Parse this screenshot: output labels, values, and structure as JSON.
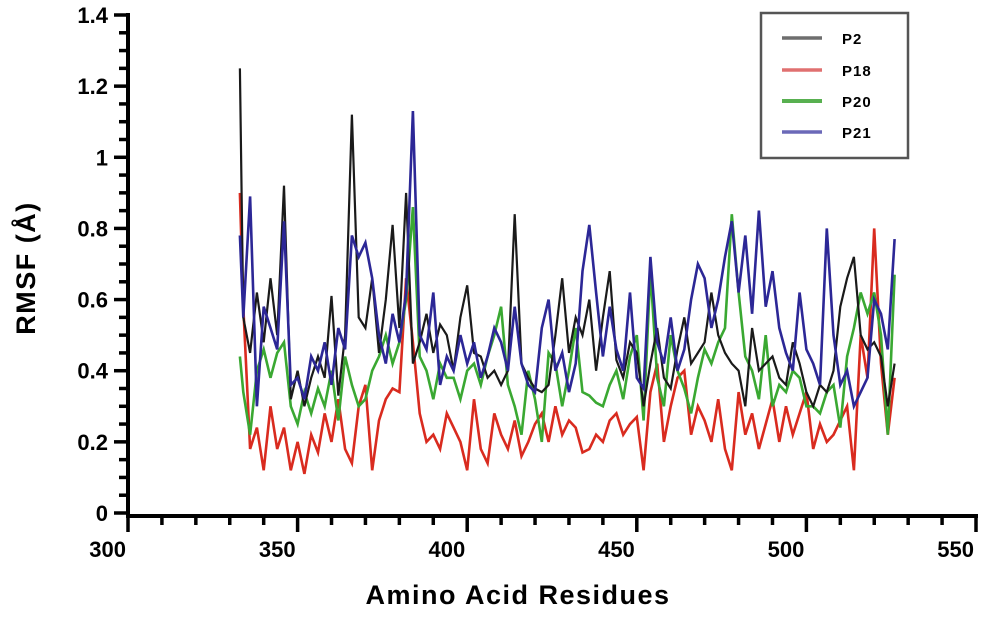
{
  "chart_data": {
    "type": "line",
    "title": "",
    "xlabel": "Amino Acid Residues",
    "ylabel": "RMSF (Å)",
    "xlim": [
      300,
      550
    ],
    "ylim": [
      0,
      1.4
    ],
    "x_ticks": [
      300,
      350,
      400,
      450,
      500,
      550
    ],
    "x_tick_labels": [
      "300",
      "350",
      "400",
      "450",
      "500",
      "550"
    ],
    "x_minor_step": 10,
    "y_ticks": [
      0,
      0.2,
      0.4,
      0.6,
      0.8,
      1.0,
      1.2,
      1.4
    ],
    "y_tick_labels": [
      "0",
      "0.2",
      "0.4",
      "0.6",
      "0.8",
      "1",
      "1.2",
      "1.4"
    ],
    "y_minor_step": 0.05,
    "grid": false,
    "legend_position": "top-right",
    "x": [
      333,
      334,
      336,
      338,
      340,
      342,
      344,
      346,
      348,
      350,
      352,
      354,
      356,
      358,
      360,
      362,
      364,
      366,
      368,
      370,
      372,
      374,
      376,
      378,
      380,
      382,
      384,
      386,
      388,
      390,
      392,
      394,
      396,
      398,
      400,
      402,
      404,
      406,
      408,
      410,
      412,
      414,
      416,
      418,
      420,
      422,
      424,
      426,
      428,
      430,
      432,
      434,
      436,
      438,
      440,
      442,
      444,
      446,
      448,
      450,
      452,
      454,
      456,
      458,
      460,
      462,
      464,
      466,
      468,
      470,
      472,
      474,
      476,
      478,
      480,
      482,
      484,
      486,
      488,
      490,
      492,
      494,
      496,
      498,
      500,
      502,
      504,
      506,
      508,
      510,
      512,
      514,
      516,
      518,
      520,
      522,
      524,
      526
    ],
    "series": [
      {
        "name": "P2",
        "color": "#1a1a1a",
        "legend_color": "#6e6e6e",
        "values": [
          1.25,
          0.55,
          0.45,
          0.62,
          0.48,
          0.66,
          0.5,
          0.92,
          0.32,
          0.4,
          0.3,
          0.38,
          0.44,
          0.38,
          0.61,
          0.33,
          0.5,
          1.12,
          0.55,
          0.52,
          0.66,
          0.45,
          0.6,
          0.81,
          0.52,
          0.9,
          0.42,
          0.48,
          0.56,
          0.45,
          0.53,
          0.5,
          0.4,
          0.55,
          0.64,
          0.45,
          0.44,
          0.38,
          0.4,
          0.36,
          0.4,
          0.84,
          0.42,
          0.38,
          0.35,
          0.34,
          0.36,
          0.5,
          0.66,
          0.45,
          0.55,
          0.5,
          0.6,
          0.4,
          0.55,
          0.68,
          0.43,
          0.38,
          0.48,
          0.45,
          0.3,
          0.42,
          0.52,
          0.38,
          0.35,
          0.46,
          0.55,
          0.42,
          0.45,
          0.48,
          0.62,
          0.5,
          0.45,
          0.42,
          0.4,
          0.3,
          0.52,
          0.4,
          0.42,
          0.44,
          0.38,
          0.36,
          0.48,
          0.42,
          0.34,
          0.3,
          0.36,
          0.34,
          0.4,
          0.58,
          0.66,
          0.72,
          0.5,
          0.46,
          0.48,
          0.44,
          0.3,
          0.42
        ]
      },
      {
        "name": "P18",
        "color": "#d92b1f",
        "legend_color": "#e07070",
        "values": [
          0.9,
          0.58,
          0.18,
          0.24,
          0.12,
          0.3,
          0.18,
          0.24,
          0.12,
          0.2,
          0.11,
          0.22,
          0.17,
          0.28,
          0.2,
          0.32,
          0.18,
          0.14,
          0.3,
          0.36,
          0.12,
          0.26,
          0.32,
          0.35,
          0.34,
          0.66,
          0.48,
          0.28,
          0.2,
          0.22,
          0.18,
          0.28,
          0.24,
          0.2,
          0.12,
          0.32,
          0.18,
          0.14,
          0.28,
          0.22,
          0.18,
          0.26,
          0.16,
          0.2,
          0.25,
          0.28,
          0.2,
          0.3,
          0.22,
          0.26,
          0.24,
          0.17,
          0.18,
          0.22,
          0.2,
          0.26,
          0.28,
          0.22,
          0.25,
          0.27,
          0.12,
          0.34,
          0.42,
          0.2,
          0.3,
          0.38,
          0.4,
          0.22,
          0.3,
          0.26,
          0.2,
          0.32,
          0.18,
          0.12,
          0.34,
          0.22,
          0.28,
          0.18,
          0.25,
          0.32,
          0.2,
          0.3,
          0.22,
          0.28,
          0.34,
          0.18,
          0.25,
          0.2,
          0.22,
          0.26,
          0.3,
          0.12,
          0.5,
          0.38,
          0.8,
          0.42,
          0.22,
          0.38
        ]
      },
      {
        "name": "P20",
        "color": "#3aa832",
        "legend_color": "#58b050",
        "values": [
          0.44,
          0.34,
          0.22,
          0.4,
          0.46,
          0.38,
          0.45,
          0.48,
          0.3,
          0.25,
          0.34,
          0.28,
          0.35,
          0.3,
          0.4,
          0.26,
          0.44,
          0.36,
          0.3,
          0.32,
          0.4,
          0.44,
          0.5,
          0.42,
          0.48,
          0.6,
          0.86,
          0.44,
          0.4,
          0.32,
          0.42,
          0.38,
          0.38,
          0.32,
          0.4,
          0.42,
          0.36,
          0.44,
          0.5,
          0.58,
          0.36,
          0.3,
          0.22,
          0.4,
          0.32,
          0.2,
          0.45,
          0.42,
          0.3,
          0.4,
          0.52,
          0.34,
          0.33,
          0.31,
          0.3,
          0.36,
          0.4,
          0.32,
          0.44,
          0.5,
          0.26,
          0.68,
          0.38,
          0.3,
          0.5,
          0.4,
          0.35,
          0.28,
          0.38,
          0.46,
          0.42,
          0.48,
          0.52,
          0.84,
          0.62,
          0.44,
          0.4,
          0.32,
          0.5,
          0.3,
          0.36,
          0.34,
          0.4,
          0.38,
          0.3,
          0.3,
          0.28,
          0.34,
          0.36,
          0.24,
          0.44,
          0.52,
          0.62,
          0.56,
          0.62,
          0.5,
          0.22,
          0.67
        ]
      },
      {
        "name": "P21",
        "color": "#2c2796",
        "legend_color": "#6b69b8",
        "values": [
          0.78,
          0.55,
          0.89,
          0.3,
          0.58,
          0.52,
          0.46,
          0.82,
          0.36,
          0.38,
          0.32,
          0.44,
          0.4,
          0.48,
          0.36,
          0.52,
          0.46,
          0.78,
          0.72,
          0.76,
          0.66,
          0.5,
          0.42,
          0.56,
          0.48,
          0.62,
          1.13,
          0.5,
          0.46,
          0.62,
          0.36,
          0.44,
          0.4,
          0.5,
          0.42,
          0.48,
          0.38,
          0.44,
          0.52,
          0.48,
          0.4,
          0.58,
          0.42,
          0.36,
          0.34,
          0.52,
          0.6,
          0.4,
          0.45,
          0.34,
          0.42,
          0.68,
          0.81,
          0.62,
          0.44,
          0.58,
          0.46,
          0.4,
          0.62,
          0.38,
          0.35,
          0.72,
          0.48,
          0.42,
          0.55,
          0.4,
          0.46,
          0.6,
          0.7,
          0.66,
          0.52,
          0.6,
          0.72,
          0.82,
          0.62,
          0.78,
          0.56,
          0.85,
          0.58,
          0.68,
          0.52,
          0.45,
          0.4,
          0.62,
          0.46,
          0.42,
          0.36,
          0.8,
          0.5,
          0.36,
          0.4,
          0.3,
          0.34,
          0.38,
          0.6,
          0.56,
          0.46,
          0.77
        ]
      }
    ]
  },
  "legend": {
    "items": [
      {
        "label": "P2"
      },
      {
        "label": "P18"
      },
      {
        "label": "P20"
      },
      {
        "label": "P21"
      }
    ]
  },
  "axes": {
    "xlabel": "Amino Acid Residues",
    "ylabel": "RMSF (Å)"
  }
}
